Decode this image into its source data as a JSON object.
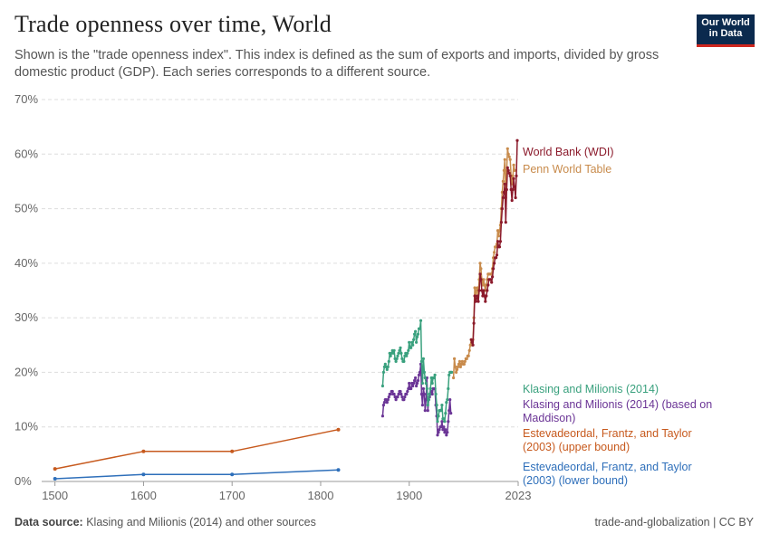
{
  "header": {
    "title": "Trade openness over time, World",
    "subtitle": "Shown is the \"trade openness index\". This index is defined as the sum of exports and imports, divided by gross domestic product (GDP). Each series corresponds to a different source."
  },
  "logo": {
    "line1": "Our World",
    "line2": "in Data"
  },
  "footer": {
    "source_label": "Data source:",
    "source_text": "Klasing and Milionis (2014) and other sources",
    "right_text": "trade-and-globalization | CC BY"
  },
  "chart_data": {
    "type": "line",
    "title": "Trade openness over time, World",
    "xlabel": "",
    "ylabel": "",
    "xlim": [
      1485,
      2023
    ],
    "ylim": [
      0,
      70
    ],
    "grid": true,
    "x_ticks": [
      "1500",
      "1600",
      "1700",
      "1800",
      "1900",
      "2023"
    ],
    "y_ticks": [
      "0%",
      "10%",
      "20%",
      "30%",
      "40%",
      "50%",
      "60%",
      "70%"
    ],
    "series": [
      {
        "name": "World Bank (WDI)",
        "color": "#8b1a2b",
        "label_lines": [
          "World Bank (WDI)"
        ],
        "points": [
          [
            1970,
            26
          ],
          [
            1971,
            25.5
          ],
          [
            1972,
            25
          ],
          [
            1973,
            29
          ],
          [
            1974,
            34
          ],
          [
            1975,
            33
          ],
          [
            1976,
            33.5
          ],
          [
            1977,
            34
          ],
          [
            1978,
            33
          ],
          [
            1979,
            35
          ],
          [
            1980,
            38
          ],
          [
            1981,
            37
          ],
          [
            1982,
            35
          ],
          [
            1983,
            34
          ],
          [
            1984,
            35
          ],
          [
            1985,
            34
          ],
          [
            1986,
            33
          ],
          [
            1987,
            34
          ],
          [
            1988,
            35
          ],
          [
            1989,
            36
          ],
          [
            1990,
            37
          ],
          [
            1991,
            37
          ],
          [
            1992,
            37
          ],
          [
            1993,
            36.5
          ],
          [
            1994,
            37.5
          ],
          [
            1995,
            39
          ],
          [
            1996,
            40
          ],
          [
            1997,
            41
          ],
          [
            1998,
            41
          ],
          [
            1999,
            41.5
          ],
          [
            2000,
            44
          ],
          [
            2001,
            43
          ],
          [
            2002,
            43
          ],
          [
            2003,
            44
          ],
          [
            2004,
            47.5
          ],
          [
            2005,
            50
          ],
          [
            2006,
            52
          ],
          [
            2007,
            53
          ],
          [
            2008,
            54.5
          ],
          [
            2009,
            47.5
          ],
          [
            2010,
            53.5
          ],
          [
            2011,
            57.5
          ],
          [
            2012,
            57
          ],
          [
            2013,
            56.5
          ],
          [
            2014,
            56
          ],
          [
            2015,
            53.5
          ],
          [
            2016,
            51.5
          ],
          [
            2017,
            53.5
          ],
          [
            2018,
            55.5
          ],
          [
            2019,
            54
          ],
          [
            2020,
            52
          ],
          [
            2021,
            56
          ],
          [
            2022,
            62.5
          ]
        ]
      },
      {
        "name": "Penn World Table",
        "color": "#c88b4c",
        "label_lines": [
          "Penn World Table"
        ],
        "points": [
          [
            1950,
            19
          ],
          [
            1951,
            22.5
          ],
          [
            1952,
            21
          ],
          [
            1953,
            20
          ],
          [
            1954,
            20.5
          ],
          [
            1955,
            21
          ],
          [
            1956,
            21.5
          ],
          [
            1957,
            22
          ],
          [
            1958,
            21
          ],
          [
            1959,
            21.5
          ],
          [
            1960,
            22
          ],
          [
            1961,
            21.5
          ],
          [
            1962,
            21.5
          ],
          [
            1963,
            22
          ],
          [
            1964,
            22.5
          ],
          [
            1965,
            22.5
          ],
          [
            1966,
            23
          ],
          [
            1967,
            23
          ],
          [
            1968,
            24
          ],
          [
            1969,
            25
          ],
          [
            1970,
            26
          ],
          [
            1971,
            25
          ],
          [
            1972,
            26
          ],
          [
            1973,
            30
          ],
          [
            1974,
            35.5
          ],
          [
            1975,
            34
          ],
          [
            1976,
            35
          ],
          [
            1977,
            35.5
          ],
          [
            1978,
            34.5
          ],
          [
            1979,
            37
          ],
          [
            1980,
            40
          ],
          [
            1981,
            39
          ],
          [
            1982,
            37
          ],
          [
            1983,
            36
          ],
          [
            1984,
            37
          ],
          [
            1985,
            36
          ],
          [
            1986,
            35
          ],
          [
            1987,
            36
          ],
          [
            1988,
            37
          ],
          [
            1989,
            38
          ],
          [
            1990,
            38
          ],
          [
            1991,
            38
          ],
          [
            1992,
            38
          ],
          [
            1993,
            38
          ],
          [
            1994,
            39
          ],
          [
            1995,
            41
          ],
          [
            1996,
            42
          ],
          [
            1997,
            43
          ],
          [
            1998,
            43
          ],
          [
            1999,
            43.5
          ],
          [
            2000,
            46
          ],
          [
            2001,
            45
          ],
          [
            2002,
            46
          ],
          [
            2003,
            47
          ],
          [
            2004,
            50
          ],
          [
            2005,
            53
          ],
          [
            2006,
            55
          ],
          [
            2007,
            57
          ],
          [
            2008,
            59
          ],
          [
            2009,
            52
          ],
          [
            2010,
            57
          ],
          [
            2011,
            61
          ],
          [
            2012,
            60
          ],
          [
            2013,
            59.5
          ],
          [
            2014,
            59
          ],
          [
            2015,
            56
          ],
          [
            2016,
            54.5
          ],
          [
            2017,
            56
          ],
          [
            2018,
            58
          ],
          [
            2019,
            57
          ]
        ]
      },
      {
        "name": "Klasing and Milionis (2014)",
        "color": "#3aa17e",
        "label_lines": [
          "Klasing and Milionis (2014)"
        ],
        "points": [
          [
            1870,
            17.5
          ],
          [
            1871,
            20
          ],
          [
            1872,
            21
          ],
          [
            1873,
            21.5
          ],
          [
            1874,
            21
          ],
          [
            1875,
            20.5
          ],
          [
            1876,
            21
          ],
          [
            1877,
            22
          ],
          [
            1878,
            23.5
          ],
          [
            1879,
            23
          ],
          [
            1880,
            23.5
          ],
          [
            1881,
            24
          ],
          [
            1882,
            23.5
          ],
          [
            1883,
            24
          ],
          [
            1884,
            22.5
          ],
          [
            1885,
            22
          ],
          [
            1886,
            22.5
          ],
          [
            1887,
            23
          ],
          [
            1888,
            23.5
          ],
          [
            1889,
            24
          ],
          [
            1890,
            24.5
          ],
          [
            1891,
            23.5
          ],
          [
            1892,
            22.5
          ],
          [
            1893,
            22
          ],
          [
            1894,
            22
          ],
          [
            1895,
            23
          ],
          [
            1896,
            23.5
          ],
          [
            1897,
            23
          ],
          [
            1898,
            23.5
          ],
          [
            1899,
            24
          ],
          [
            1900,
            25.5
          ],
          [
            1901,
            24.5
          ],
          [
            1902,
            24.5
          ],
          [
            1903,
            25.5
          ],
          [
            1904,
            25
          ],
          [
            1905,
            26
          ],
          [
            1906,
            27
          ],
          [
            1907,
            27.5
          ],
          [
            1908,
            25.5
          ],
          [
            1909,
            26.5
          ],
          [
            1910,
            27
          ],
          [
            1911,
            28
          ],
          [
            1912,
            28
          ],
          [
            1913,
            29.5
          ],
          [
            1914,
            22
          ],
          [
            1915,
            18
          ],
          [
            1916,
            22.5
          ],
          [
            1917,
            20
          ],
          [
            1918,
            19
          ],
          [
            1919,
            18
          ],
          [
            1920,
            17
          ],
          [
            1921,
            14
          ],
          [
            1922,
            15
          ],
          [
            1923,
            16
          ],
          [
            1924,
            17
          ],
          [
            1925,
            19
          ],
          [
            1926,
            18
          ],
          [
            1927,
            19
          ],
          [
            1928,
            19
          ],
          [
            1929,
            19.5
          ],
          [
            1930,
            16
          ],
          [
            1931,
            14
          ],
          [
            1932,
            11
          ],
          [
            1933,
            12
          ],
          [
            1934,
            13
          ],
          [
            1935,
            13
          ],
          [
            1936,
            13
          ],
          [
            1937,
            14
          ],
          [
            1938,
            11.5
          ],
          [
            1939,
            11.5
          ],
          [
            1940,
            11
          ],
          [
            1941,
            12.5
          ],
          [
            1942,
            14.5
          ],
          [
            1943,
            15
          ],
          [
            1944,
            17
          ],
          [
            1945,
            19.5
          ],
          [
            1946,
            20
          ],
          [
            1947,
            20
          ],
          [
            1948,
            20
          ]
        ]
      },
      {
        "name": "Klasing and Milionis (2014) (based on Maddison)",
        "color": "#6b3596",
        "label_lines": [
          "Klasing and Milionis (2014) (based on",
          "Maddison)"
        ],
        "points": [
          [
            1870,
            12
          ],
          [
            1871,
            14
          ],
          [
            1872,
            14.5
          ],
          [
            1873,
            15
          ],
          [
            1874,
            15
          ],
          [
            1875,
            14.5
          ],
          [
            1876,
            15
          ],
          [
            1877,
            15.5
          ],
          [
            1878,
            16
          ],
          [
            1879,
            16
          ],
          [
            1880,
            16.5
          ],
          [
            1881,
            16.5
          ],
          [
            1882,
            16
          ],
          [
            1883,
            16
          ],
          [
            1884,
            15.5
          ],
          [
            1885,
            15
          ],
          [
            1886,
            15.5
          ],
          [
            1887,
            15.5
          ],
          [
            1888,
            16
          ],
          [
            1889,
            16.5
          ],
          [
            1890,
            16.5
          ],
          [
            1891,
            16
          ],
          [
            1892,
            15.5
          ],
          [
            1893,
            15
          ],
          [
            1894,
            15
          ],
          [
            1895,
            15.5
          ],
          [
            1896,
            16
          ],
          [
            1897,
            16
          ],
          [
            1898,
            16.5
          ],
          [
            1899,
            17
          ],
          [
            1900,
            18
          ],
          [
            1901,
            17
          ],
          [
            1902,
            17
          ],
          [
            1903,
            18
          ],
          [
            1904,
            17.5
          ],
          [
            1905,
            18
          ],
          [
            1906,
            18.5
          ],
          [
            1907,
            19
          ],
          [
            1908,
            17.5
          ],
          [
            1909,
            18
          ],
          [
            1910,
            18.5
          ],
          [
            1911,
            19.5
          ],
          [
            1912,
            20
          ],
          [
            1913,
            21.5
          ],
          [
            1914,
            16
          ],
          [
            1915,
            14
          ],
          [
            1916,
            17
          ],
          [
            1917,
            16
          ],
          [
            1918,
            13
          ],
          [
            1919,
            15
          ],
          [
            1920,
            19
          ],
          [
            1921,
            13
          ],
          [
            1922,
            15
          ],
          [
            1923,
            15.5
          ],
          [
            1924,
            16
          ],
          [
            1925,
            16.5
          ],
          [
            1926,
            16
          ],
          [
            1927,
            17
          ],
          [
            1928,
            17
          ],
          [
            1929,
            17
          ],
          [
            1930,
            14
          ],
          [
            1931,
            12
          ],
          [
            1932,
            8.5
          ],
          [
            1933,
            9
          ],
          [
            1934,
            9.5
          ],
          [
            1935,
            10
          ],
          [
            1936,
            10
          ],
          [
            1937,
            11
          ],
          [
            1938,
            9.5
          ],
          [
            1939,
            10
          ],
          [
            1940,
            9
          ],
          [
            1941,
            9.5
          ],
          [
            1942,
            8.5
          ],
          [
            1943,
            9
          ],
          [
            1944,
            11
          ],
          [
            1945,
            13
          ],
          [
            1946,
            15
          ],
          [
            1947,
            12.5
          ]
        ]
      },
      {
        "name": "Estevadeordal, Frantz, and Taylor (2003) (upper bound)",
        "color": "#c75a1e",
        "label_lines": [
          "Estevadeordal, Frantz, and Taylor",
          "(2003) (upper bound)"
        ],
        "points": [
          [
            1500,
            2.3
          ],
          [
            1600,
            5.5
          ],
          [
            1700,
            5.5
          ],
          [
            1820,
            9.5
          ]
        ]
      },
      {
        "name": "Estevadeordal, Frantz, and Taylor (2003) (lower bound)",
        "color": "#2e6fba",
        "label_lines": [
          "Estevadeordal, Frantz, and Taylor",
          "(2003) (lower bound)"
        ],
        "points": [
          [
            1500,
            0.5
          ],
          [
            1600,
            1.3
          ],
          [
            1700,
            1.3
          ],
          [
            1820,
            2.1
          ]
        ]
      }
    ]
  }
}
